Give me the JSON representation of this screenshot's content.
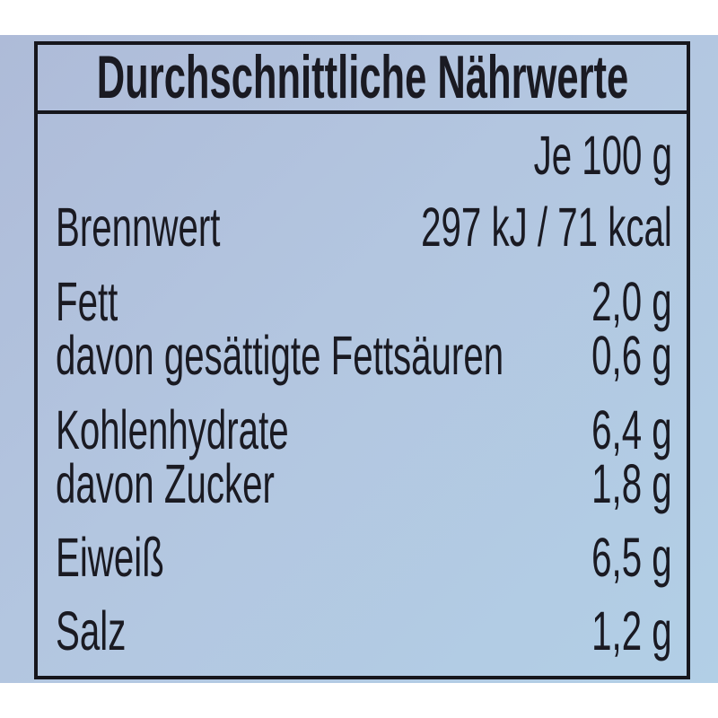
{
  "label": {
    "title": "Durchschnittliche Nährwerte",
    "per_unit": "Je 100 g",
    "rows": [
      {
        "name": "Brennwert",
        "value": "297 kJ / 71 kcal"
      },
      {
        "name": "Fett",
        "value": "2,0 g"
      },
      {
        "name": "davon gesättigte Fettsäuren",
        "value": "0,6 g"
      },
      {
        "name": "Kohlenhydrate",
        "value": "6,4 g"
      },
      {
        "name": "davon Zucker",
        "value": "1,8 g"
      },
      {
        "name": "Eiweiß",
        "value": "6,5 g"
      },
      {
        "name": "Salz",
        "value": "1,2 g"
      }
    ]
  },
  "colors": {
    "background": "#b2c6e0",
    "border": "#16161c",
    "text": "#1a1a22"
  }
}
